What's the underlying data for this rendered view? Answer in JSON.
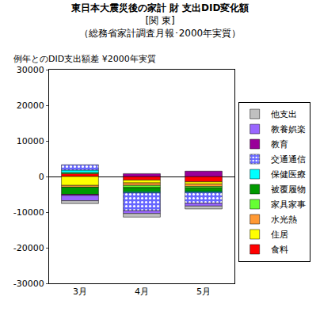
{
  "chart_data": {
    "type": "bar",
    "stacked": true,
    "title": "東日本大震災後の家計 財 支出DID変化額",
    "subtitle": [
      "[関 東]",
      "（総務省家計調査月報･2000年実質）"
    ],
    "ylabel": "例年とのDID支出額差 ¥2000年実質",
    "categories": [
      "3月",
      "4月",
      "5月"
    ],
    "ylim": [
      -30000,
      30000
    ],
    "yticks": [
      -30000,
      -20000,
      -10000,
      0,
      10000,
      20000,
      30000
    ],
    "grid": false,
    "legend": "right",
    "series": [
      {
        "name": "食料",
        "color": "#ff0000",
        "values": [
          800,
          -1000,
          -1500
        ]
      },
      {
        "name": "住居",
        "color": "#ffff00",
        "values": [
          -2500,
          -800,
          -600
        ]
      },
      {
        "name": "水光熱",
        "color": "#ff9933",
        "values": [
          -500,
          -700,
          -700
        ]
      },
      {
        "name": "家具家事",
        "color": "#66ff33",
        "values": [
          300,
          -600,
          -400
        ]
      },
      {
        "name": "被覆履物",
        "color": "#009900",
        "values": [
          -2000,
          -1200,
          -1000
        ]
      },
      {
        "name": "保健医療",
        "color": "#00ffff",
        "values": [
          700,
          -300,
          -300
        ]
      },
      {
        "name": "交通通信",
        "color": "#6666ff",
        "marker": "dots",
        "values": [
          1500,
          -5000,
          -3000
        ]
      },
      {
        "name": "教育",
        "color": "#990099",
        "values": [
          -300,
          800,
          1500
        ]
      },
      {
        "name": "教養娯楽",
        "color": "#9966ff",
        "values": [
          -1500,
          -800,
          -800
        ]
      },
      {
        "name": "他支出",
        "color": "#c0c0c0",
        "values": [
          -800,
          -1000,
          -800
        ]
      }
    ]
  }
}
